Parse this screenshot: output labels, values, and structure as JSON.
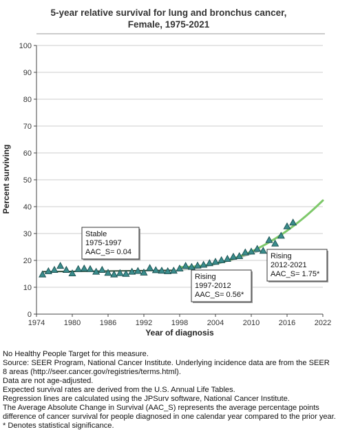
{
  "chart_data": {
    "type": "scatter",
    "title": [
      "5-year relative survival for lung and bronchus cancer,",
      "Female,  1975-2021"
    ],
    "xlabel": "Year of diagnosis",
    "ylabel": "Percent surviving",
    "xlim": [
      1974,
      2022
    ],
    "ylim": [
      0,
      100
    ],
    "xticks": [
      1974,
      1980,
      1986,
      1992,
      1998,
      2004,
      2010,
      2016,
      2022
    ],
    "yticks": [
      0,
      10,
      20,
      30,
      40,
      50,
      60,
      70,
      80,
      90,
      100
    ],
    "grid": "horizontal",
    "colors": {
      "marker": "#3a8c8c",
      "marker_edge": "#1a4f4f",
      "fit_line": "#2b4b35",
      "projection_line": "#7ec86a",
      "grid": "#cccccc"
    },
    "observed": {
      "x": [
        1975,
        1976,
        1977,
        1978,
        1979,
        1980,
        1981,
        1982,
        1983,
        1984,
        1985,
        1986,
        1987,
        1988,
        1989,
        1990,
        1991,
        1992,
        1993,
        1994,
        1995,
        1996,
        1997,
        1998,
        1999,
        2000,
        2001,
        2002,
        2003,
        2004,
        2005,
        2006,
        2007,
        2008,
        2009,
        2010,
        2011,
        2012,
        2013,
        2014,
        2015,
        2016,
        2017
      ],
      "y": [
        14.8,
        16.0,
        16.5,
        18.0,
        16.5,
        15.2,
        16.8,
        17.0,
        16.8,
        15.8,
        16.5,
        15.4,
        14.8,
        15.3,
        15.0,
        15.8,
        16.1,
        15.5,
        17.2,
        16.4,
        16.2,
        16.0,
        16.2,
        17.0,
        18.0,
        17.6,
        18.1,
        18.4,
        19.0,
        19.5,
        20.1,
        20.6,
        21.4,
        21.6,
        23.0,
        23.3,
        24.3,
        23.6,
        27.6,
        26.3,
        29.2,
        32.7,
        34.1
      ]
    },
    "segments": [
      {
        "label": [
          "Stable",
          "1975-1997",
          "AAC_S=  0.04"
        ],
        "range": [
          1975,
          1997
        ],
        "start": 15.8,
        "end": 16.3
      },
      {
        "label": [
          "Rising",
          "1997-2012",
          "AAC_S=  0.56*"
        ],
        "range": [
          1997,
          2012
        ],
        "start": 16.3,
        "end": 24.0
      },
      {
        "label": [
          "Rising",
          "2012-2021",
          "AAC_S=  1.75*"
        ],
        "range": [
          2012,
          2021
        ],
        "start": 24.0,
        "end": 39.0
      }
    ],
    "projection": {
      "range": [
        1998,
        2022
      ],
      "start": 17.5,
      "end": 42.3
    }
  },
  "notes": [
    "No Healthy People Target for this measure.",
    "Source: SEER Program, National Cancer Institute. Underlying incidence data are from the SEER 8 areas (http://seer.cancer.gov/registries/terms.html).",
    "Data are not age-adjusted.",
    "Expected survival rates are derived from the U.S. Annual Life Tables.",
    "Regression lines are calculated using the JPSurv software, National Cancer Institute.",
    "The Average Absolute Change in Survival (AAC_S) represents the average percentage points difference of cancer survival for people diagnosed in one calendar year compared to the prior year.",
    "* Denotes statistical significance."
  ]
}
